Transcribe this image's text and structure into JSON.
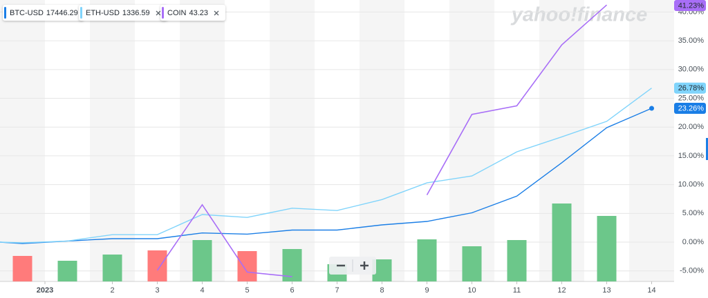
{
  "chart_data": {
    "type": "line",
    "watermark": "yahoo!finance",
    "x": [
      -0.5,
      0,
      1,
      2,
      3,
      4,
      5,
      6,
      7,
      8,
      9,
      10,
      11,
      12,
      13,
      14
    ],
    "xlim": [
      -0.5,
      14.5
    ],
    "xticks": [
      {
        "value": 0.5,
        "label": "2023"
      },
      2,
      3,
      4,
      5,
      6,
      7,
      8,
      9,
      10,
      11,
      12,
      13,
      14
    ],
    "ylim": [
      -6.83,
      42.09
    ],
    "yticks": [
      {
        "value": -5,
        "label": "-5.00%"
      },
      {
        "value": 0,
        "label": "0.00%"
      },
      {
        "value": 5,
        "label": "5.00%"
      },
      {
        "value": 10,
        "label": "10.00%"
      },
      {
        "value": 15,
        "label": "15.00%"
      },
      {
        "value": 20,
        "label": "20.00%"
      },
      {
        "value": 25,
        "label": "25.00%"
      },
      {
        "value": 30,
        "label": "30.00%"
      },
      {
        "value": 35,
        "label": "35.00%"
      },
      {
        "value": 40,
        "label": "40.00%"
      }
    ],
    "series": [
      {
        "name": "BTC-USD",
        "price": "17446.29",
        "color": "#1a7ee6",
        "label_text_color": "#ffffff",
        "end_label": "23.26%",
        "values": [
          0,
          -0.25,
          0.2,
          0.6,
          0.6,
          1.6,
          1.4,
          2.1,
          2.1,
          3.0,
          3.6,
          5.1,
          8.0,
          13.8,
          19.9,
          23.26
        ]
      },
      {
        "name": "ETH-USD",
        "price": "1336.59",
        "color": "#80d4fb",
        "label_text_color": "#232a31",
        "end_label": "26.78%",
        "values": [
          0,
          -0.1,
          0.2,
          1.3,
          1.3,
          4.8,
          4.3,
          5.9,
          5.5,
          7.4,
          10.3,
          11.5,
          15.7,
          18.3,
          21.0,
          26.78
        ]
      },
      {
        "name": "COIN",
        "price": "43.23",
        "color": "#a86ef7",
        "label_text_color": "#232a31",
        "end_label": "41.23%",
        "values": [
          null,
          null,
          null,
          null,
          -4.9,
          6.5,
          -5.2,
          -6.0,
          null,
          null,
          8.2,
          22.2,
          23.7,
          34.3,
          41.23,
          null
        ]
      }
    ],
    "volume": {
      "x": [
        0,
        1,
        2,
        3,
        4,
        5,
        6,
        7,
        8,
        9,
        10,
        11,
        12,
        13
      ],
      "values": [
        37,
        30,
        39,
        45,
        60,
        44,
        47,
        25,
        32,
        61,
        51,
        60,
        113,
        95
      ],
      "colors": [
        "#ff7b7b",
        "#6cc78a",
        "#6cc78a",
        "#ff7b7b",
        "#6cc78a",
        "#ff7b7b",
        "#6cc78a",
        "#6cc78a",
        "#6cc78a",
        "#6cc78a",
        "#6cc78a",
        "#6cc78a",
        "#6cc78a",
        "#6cc78a"
      ],
      "ylim": [
        0,
        140
      ]
    },
    "grid": true
  }
}
